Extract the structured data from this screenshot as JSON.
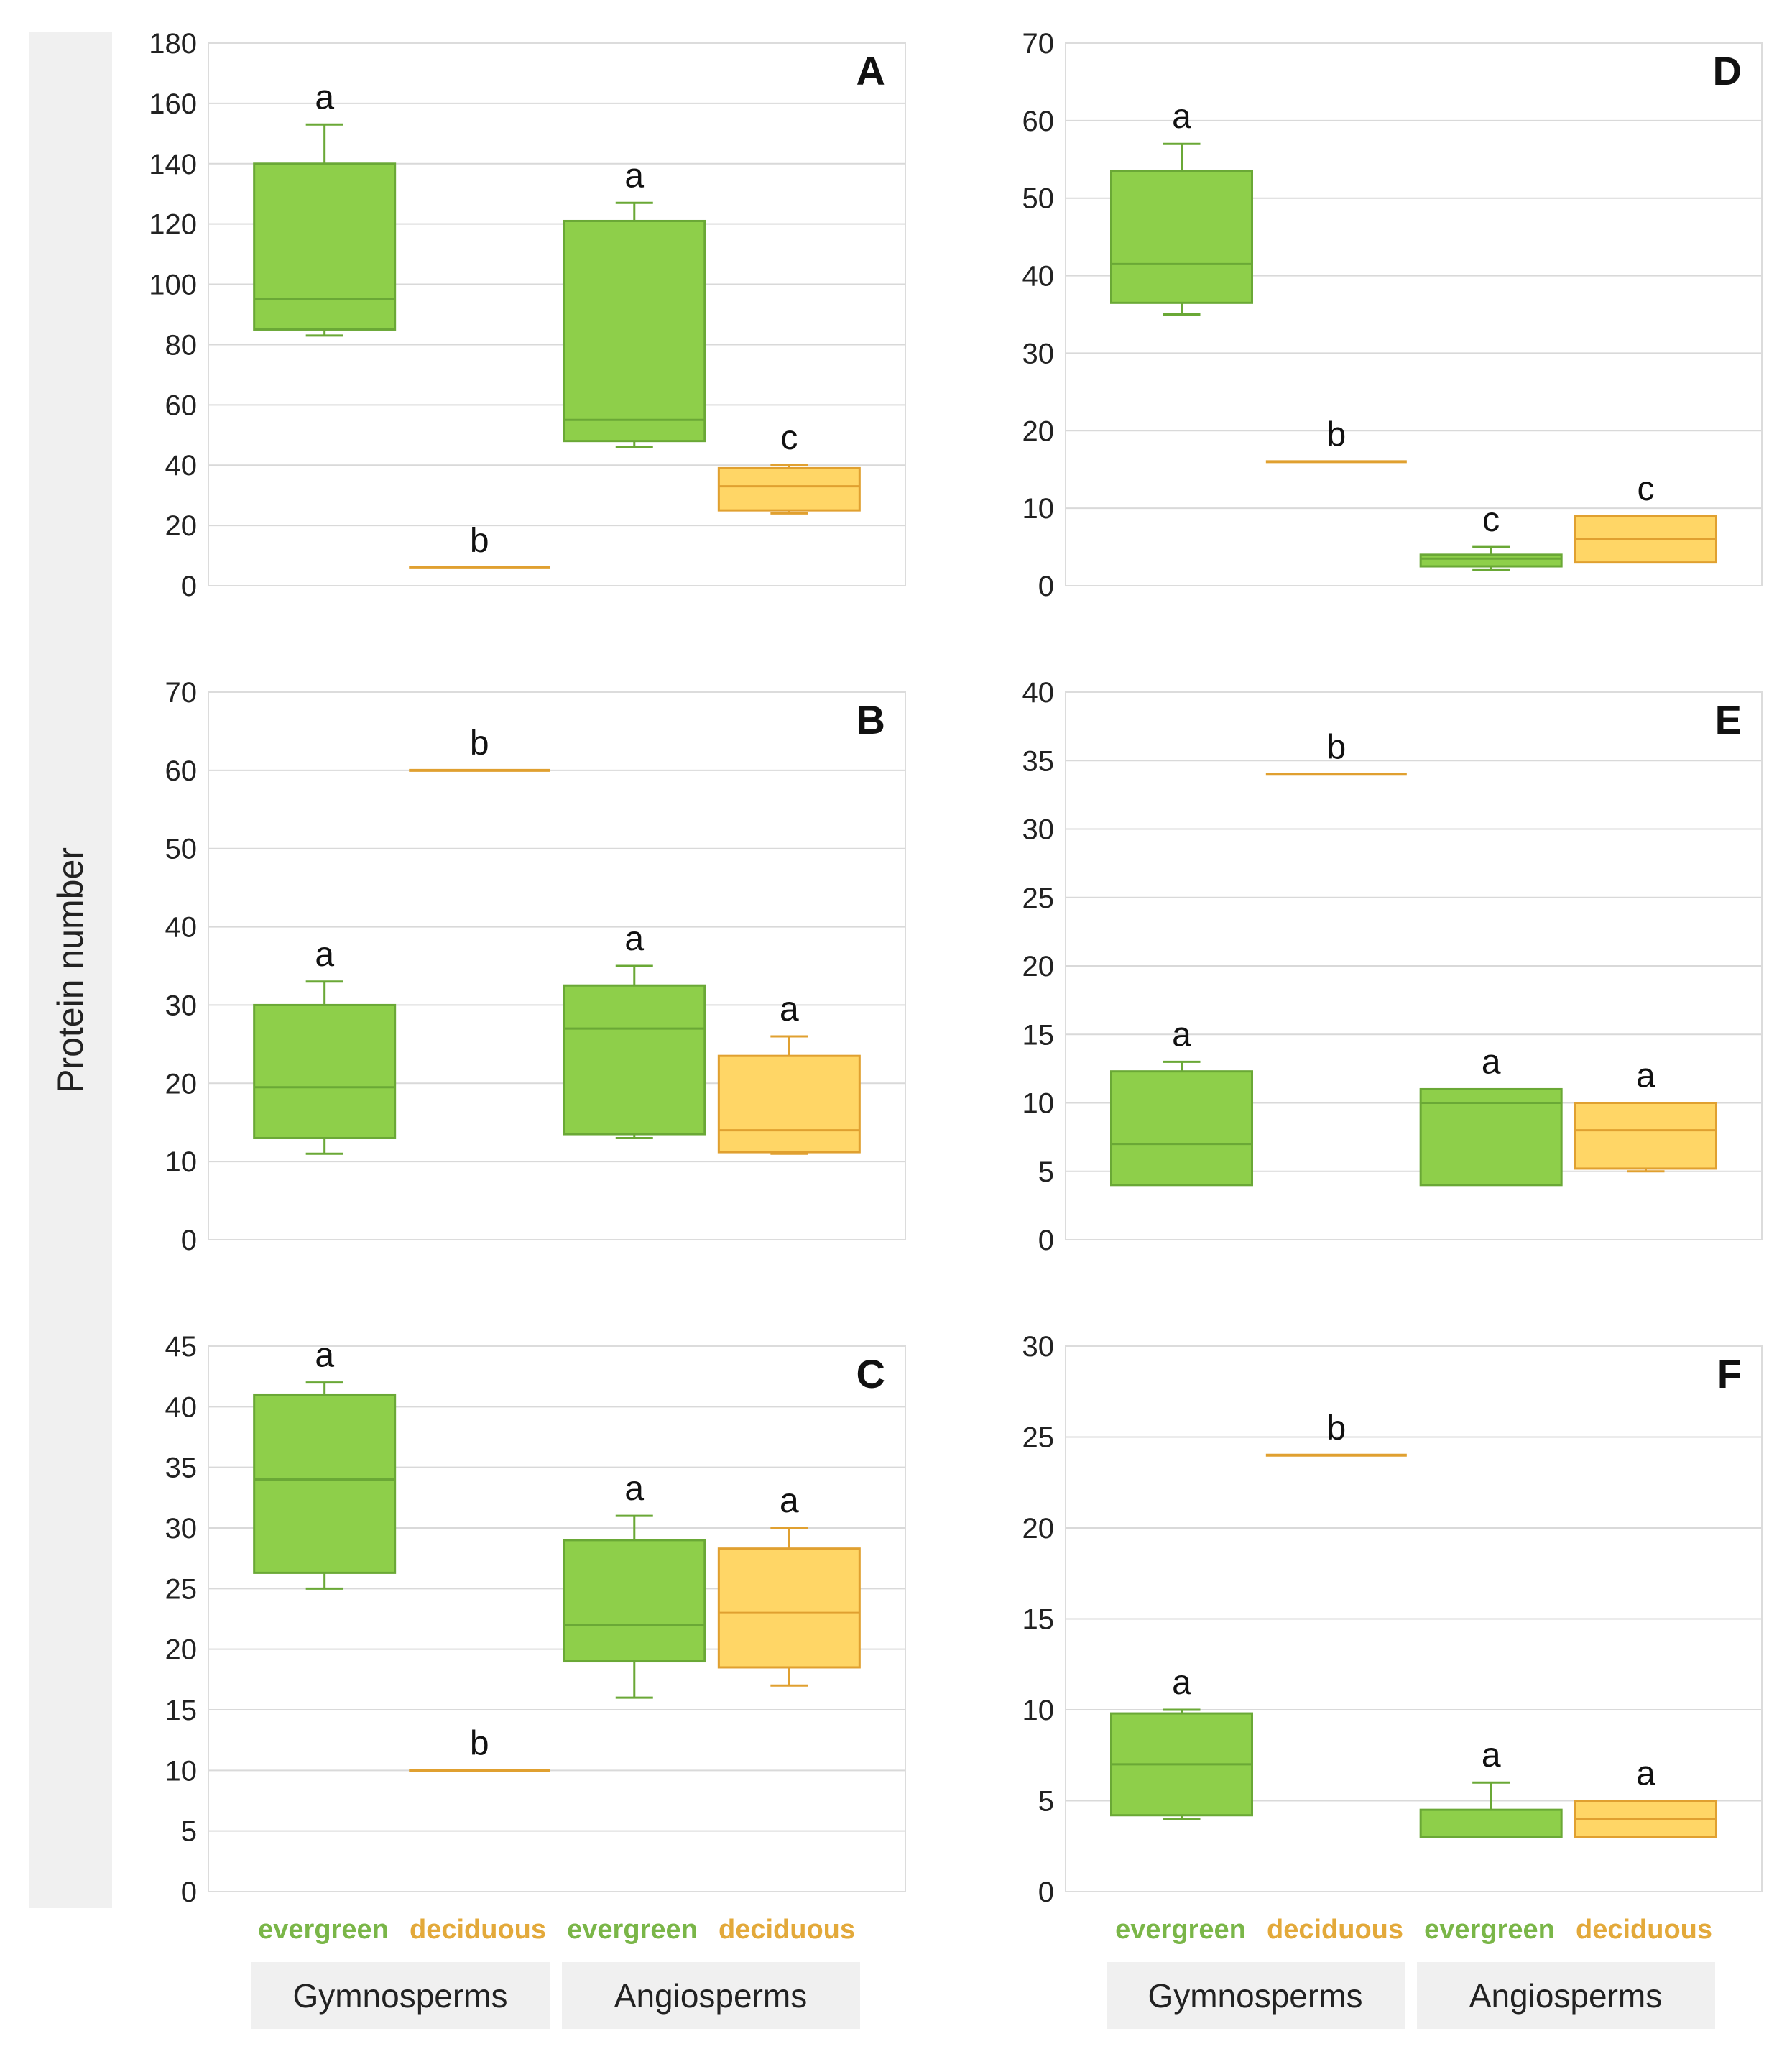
{
  "y_axis_label": "Protein number",
  "categories": [
    "evergreen",
    "deciduous",
    "evergreen",
    "deciduous"
  ],
  "groups": [
    "Gymnosperms",
    "Angiosperms"
  ],
  "colors": {
    "evergreen_fill": "#8ecf4a",
    "evergreen_stroke": "#6aa836",
    "deciduous_fill": "#ffd666",
    "deciduous_stroke": "#e0a030",
    "evergreen_label": "#7ab648",
    "deciduous_label": "#e3a93a",
    "grid": "#d9d9d9",
    "axis_band": "#f0f0f0"
  },
  "chart_data": [
    {
      "type": "box",
      "panel": "A",
      "ylim": [
        0,
        180
      ],
      "yticks": [
        0,
        20,
        40,
        60,
        80,
        100,
        120,
        140,
        160,
        180
      ],
      "series": [
        {
          "category": "evergreen",
          "group": "Gymnosperms",
          "min": 83,
          "q1": 85,
          "median": 95,
          "q3": 140,
          "max": 153,
          "letter": "a"
        },
        {
          "category": "deciduous",
          "group": "Gymnosperms",
          "min": 6,
          "q1": 6,
          "median": 6,
          "q3": 6,
          "max": 6,
          "letter": "b"
        },
        {
          "category": "evergreen",
          "group": "Angiosperms",
          "min": 46,
          "q1": 48,
          "median": 55,
          "q3": 121,
          "max": 127,
          "letter": "a"
        },
        {
          "category": "deciduous",
          "group": "Angiosperms",
          "min": 24,
          "q1": 25,
          "median": 33,
          "q3": 39,
          "max": 40,
          "letter": "c"
        }
      ]
    },
    {
      "type": "box",
      "panel": "B",
      "ylim": [
        0,
        70
      ],
      "yticks": [
        0,
        10,
        20,
        30,
        40,
        50,
        60,
        70
      ],
      "series": [
        {
          "category": "evergreen",
          "group": "Gymnosperms",
          "min": 11,
          "q1": 13,
          "median": 19.5,
          "q3": 30,
          "max": 33,
          "letter": "a"
        },
        {
          "category": "deciduous",
          "group": "Gymnosperms",
          "min": 60,
          "q1": 60,
          "median": 60,
          "q3": 60,
          "max": 60,
          "letter": "b"
        },
        {
          "category": "evergreen",
          "group": "Angiosperms",
          "min": 13,
          "q1": 13.5,
          "median": 27,
          "q3": 32.5,
          "max": 35,
          "letter": "a"
        },
        {
          "category": "deciduous",
          "group": "Angiosperms",
          "min": 11,
          "q1": 11.2,
          "median": 14,
          "q3": 23.5,
          "max": 26,
          "letter": "a"
        }
      ]
    },
    {
      "type": "box",
      "panel": "C",
      "ylim": [
        0,
        45
      ],
      "yticks": [
        0,
        5,
        10,
        15,
        20,
        25,
        30,
        35,
        40,
        45
      ],
      "series": [
        {
          "category": "evergreen",
          "group": "Gymnosperms",
          "min": 25,
          "q1": 26.3,
          "median": 34,
          "q3": 41,
          "max": 42,
          "letter": "a"
        },
        {
          "category": "deciduous",
          "group": "Gymnosperms",
          "min": 10,
          "q1": 10,
          "median": 10,
          "q3": 10,
          "max": 10,
          "letter": "b"
        },
        {
          "category": "evergreen",
          "group": "Angiosperms",
          "min": 16,
          "q1": 19,
          "median": 22,
          "q3": 29,
          "max": 31,
          "letter": "a"
        },
        {
          "category": "deciduous",
          "group": "Angiosperms",
          "min": 17,
          "q1": 18.5,
          "median": 23,
          "q3": 28.3,
          "max": 30,
          "letter": "a"
        }
      ]
    },
    {
      "type": "box",
      "panel": "D",
      "ylim": [
        0,
        70
      ],
      "yticks": [
        0,
        10,
        20,
        30,
        40,
        50,
        60,
        70
      ],
      "series": [
        {
          "category": "evergreen",
          "group": "Gymnosperms",
          "min": 35,
          "q1": 36.5,
          "median": 41.5,
          "q3": 53.5,
          "max": 57,
          "letter": "a"
        },
        {
          "category": "deciduous",
          "group": "Gymnosperms",
          "min": 16,
          "q1": 16,
          "median": 16,
          "q3": 16,
          "max": 16,
          "letter": "b"
        },
        {
          "category": "evergreen",
          "group": "Angiosperms",
          "min": 2,
          "q1": 2.5,
          "median": 3.5,
          "q3": 4,
          "max": 5,
          "letter": "c"
        },
        {
          "category": "deciduous",
          "group": "Angiosperms",
          "min": 3,
          "q1": 3,
          "median": 6,
          "q3": 9,
          "max": 9,
          "letter": "c"
        }
      ]
    },
    {
      "type": "box",
      "panel": "E",
      "ylim": [
        0,
        40
      ],
      "yticks": [
        0,
        5,
        10,
        15,
        20,
        25,
        30,
        35,
        40
      ],
      "series": [
        {
          "category": "evergreen",
          "group": "Gymnosperms",
          "min": 4,
          "q1": 4,
          "median": 7,
          "q3": 12.3,
          "max": 13,
          "letter": "a"
        },
        {
          "category": "deciduous",
          "group": "Gymnosperms",
          "min": 34,
          "q1": 34,
          "median": 34,
          "q3": 34,
          "max": 34,
          "letter": "b"
        },
        {
          "category": "evergreen",
          "group": "Angiosperms",
          "min": 4,
          "q1": 4,
          "median": 10,
          "q3": 11,
          "max": 11,
          "letter": "a"
        },
        {
          "category": "deciduous",
          "group": "Angiosperms",
          "min": 5,
          "q1": 5.2,
          "median": 8,
          "q3": 10,
          "max": 10,
          "letter": "a"
        }
      ]
    },
    {
      "type": "box",
      "panel": "F",
      "ylim": [
        0,
        30
      ],
      "yticks": [
        0,
        5,
        10,
        15,
        20,
        25,
        30
      ],
      "series": [
        {
          "category": "evergreen",
          "group": "Gymnosperms",
          "min": 4,
          "q1": 4.2,
          "median": 7,
          "q3": 9.8,
          "max": 10,
          "letter": "a"
        },
        {
          "category": "deciduous",
          "group": "Gymnosperms",
          "min": 24,
          "q1": 24,
          "median": 24,
          "q3": 24,
          "max": 24,
          "letter": "b"
        },
        {
          "category": "evergreen",
          "group": "Angiosperms",
          "min": 3,
          "q1": 3,
          "median": 3,
          "q3": 4.5,
          "max": 6,
          "letter": "a"
        },
        {
          "category": "deciduous",
          "group": "Angiosperms",
          "min": 3,
          "q1": 3,
          "median": 4,
          "q3": 5,
          "max": 5,
          "letter": "a"
        }
      ]
    }
  ]
}
